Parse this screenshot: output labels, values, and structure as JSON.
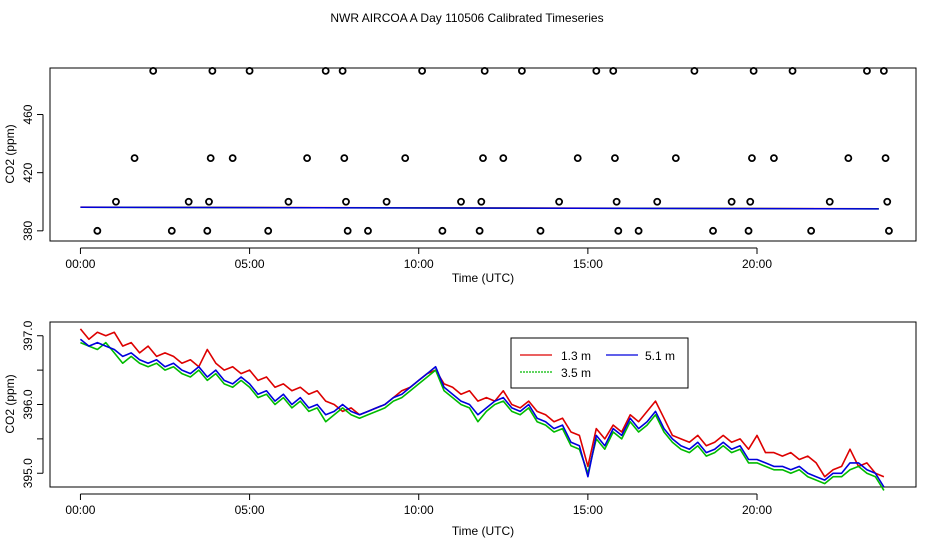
{
  "title": "NWR AIRCOA A  Day 110506  Calibrated Timeseries",
  "colors": {
    "red": "#dd0000",
    "green": "#00bb00",
    "blue": "#0000dd",
    "black": "#000000"
  },
  "chart_data": [
    {
      "type": "scatter",
      "title": "",
      "xlabel": "Time (UTC)",
      "ylabel": "CO2 (ppm)",
      "xlim": [
        -0.9,
        24.7
      ],
      "ylim": [
        373,
        492
      ],
      "xticks": [
        0,
        5,
        10,
        15,
        20
      ],
      "xtick_labels": [
        "00:00",
        "05:00",
        "10:00",
        "15:00",
        "20:00"
      ],
      "yticks": [
        380,
        420,
        460
      ],
      "ytick_labels": [
        "380",
        "420",
        "460"
      ],
      "points": [
        [
          0.5,
          380
        ],
        [
          1.05,
          400
        ],
        [
          1.6,
          430
        ],
        [
          2.15,
          490
        ],
        [
          2.7,
          380
        ],
        [
          3.2,
          400
        ],
        [
          3.75,
          380
        ],
        [
          3.8,
          400
        ],
        [
          3.85,
          430
        ],
        [
          3.9,
          490
        ],
        [
          4.5,
          430
        ],
        [
          5.0,
          490
        ],
        [
          5.55,
          380
        ],
        [
          6.15,
          400
        ],
        [
          6.7,
          430
        ],
        [
          7.25,
          490
        ],
        [
          7.75,
          490
        ],
        [
          7.8,
          430
        ],
        [
          7.85,
          400
        ],
        [
          7.9,
          380
        ],
        [
          8.5,
          380
        ],
        [
          9.05,
          400
        ],
        [
          9.6,
          430
        ],
        [
          10.1,
          490
        ],
        [
          10.7,
          380
        ],
        [
          11.25,
          400
        ],
        [
          11.8,
          380
        ],
        [
          11.85,
          400
        ],
        [
          11.9,
          430
        ],
        [
          11.95,
          490
        ],
        [
          12.5,
          430
        ],
        [
          13.05,
          490
        ],
        [
          13.6,
          380
        ],
        [
          14.15,
          400
        ],
        [
          14.7,
          430
        ],
        [
          15.25,
          490
        ],
        [
          15.75,
          490
        ],
        [
          15.8,
          430
        ],
        [
          15.85,
          400
        ],
        [
          15.9,
          380
        ],
        [
          16.5,
          380
        ],
        [
          17.05,
          400
        ],
        [
          17.6,
          430
        ],
        [
          18.15,
          490
        ],
        [
          18.7,
          380
        ],
        [
          19.25,
          400
        ],
        [
          19.75,
          380
        ],
        [
          19.8,
          400
        ],
        [
          19.85,
          430
        ],
        [
          19.9,
          490
        ],
        [
          20.5,
          430
        ],
        [
          21.05,
          490
        ],
        [
          21.6,
          380
        ],
        [
          22.15,
          400
        ],
        [
          22.7,
          430
        ],
        [
          23.25,
          490
        ],
        [
          23.75,
          490
        ],
        [
          23.8,
          430
        ],
        [
          23.85,
          400
        ],
        [
          23.9,
          380
        ]
      ],
      "series": [
        {
          "name": "1.3 m",
          "color": "#dd0000",
          "y0": 396.3,
          "y1": 395.2
        },
        {
          "name": "3.5 m",
          "color": "#00bb00",
          "y0": 396.2,
          "y1": 395.1
        },
        {
          "name": "5.1 m",
          "color": "#0000dd",
          "y0": 396.2,
          "y1": 395.1
        }
      ],
      "line_x": [
        0,
        23.6
      ]
    },
    {
      "type": "line",
      "title": "",
      "xlabel": "Time (UTC)",
      "ylabel": "CO2 (ppm)",
      "xlim": [
        -0.9,
        24.7
      ],
      "ylim": [
        394.8,
        397.2
      ],
      "xticks": [
        0,
        5,
        10,
        15,
        20
      ],
      "xtick_labels": [
        "00:00",
        "05:00",
        "10:00",
        "15:00",
        "20:00"
      ],
      "yticks": [
        395.0,
        395.5,
        396.0,
        396.5,
        397.0
      ],
      "ytick_labels": [
        "395.0",
        "",
        "396.0",
        "",
        "397.0"
      ],
      "legend": {
        "position": "top-right",
        "labels": [
          "1.3 m",
          "5.1 m",
          "3.5 m"
        ]
      },
      "series": [
        {
          "name": "1.3 m",
          "color": "#dd0000",
          "x": [
            0,
            0.25,
            0.5,
            0.75,
            1,
            1.25,
            1.5,
            1.75,
            2,
            2.25,
            2.5,
            2.75,
            3,
            3.25,
            3.5,
            3.75,
            4,
            4.25,
            4.5,
            4.75,
            5,
            5.25,
            5.5,
            5.75,
            6,
            6.25,
            6.5,
            6.75,
            7,
            7.25,
            7.5,
            7.75,
            8,
            8.25,
            8.5,
            8.75,
            9,
            9.25,
            9.5,
            9.75,
            10,
            10.25,
            10.5,
            10.75,
            11,
            11.25,
            11.5,
            11.75,
            12,
            12.25,
            12.5,
            12.75,
            13,
            13.25,
            13.5,
            13.75,
            14,
            14.25,
            14.5,
            14.75,
            15,
            15.25,
            15.5,
            15.75,
            16,
            16.25,
            16.5,
            16.75,
            17,
            17.25,
            17.5,
            17.75,
            18,
            18.25,
            18.5,
            18.75,
            19,
            19.25,
            19.5,
            19.75,
            20,
            20.25,
            20.5,
            20.75,
            21,
            21.25,
            21.5,
            21.75,
            22,
            22.25,
            22.5,
            22.75,
            23,
            23.25,
            23.5,
            23.75
          ],
          "y": [
            397.1,
            396.95,
            397.05,
            397.0,
            397.05,
            396.85,
            396.9,
            396.75,
            396.85,
            396.7,
            396.75,
            396.7,
            396.6,
            396.65,
            396.55,
            396.8,
            396.6,
            396.5,
            396.55,
            396.45,
            396.5,
            396.35,
            396.4,
            396.25,
            396.3,
            396.2,
            396.25,
            396.15,
            396.2,
            396.05,
            396.0,
            395.9,
            395.95,
            395.85,
            395.9,
            395.95,
            396.0,
            396.1,
            396.2,
            396.25,
            396.35,
            396.45,
            396.5,
            396.3,
            396.25,
            396.15,
            396.2,
            396.05,
            396.1,
            396.05,
            396.2,
            396.0,
            395.95,
            396.05,
            395.9,
            395.85,
            395.75,
            395.8,
            395.6,
            395.55,
            395.1,
            395.65,
            395.5,
            395.7,
            395.6,
            395.85,
            395.75,
            395.9,
            396.05,
            395.8,
            395.55,
            395.5,
            395.45,
            395.55,
            395.4,
            395.45,
            395.55,
            395.45,
            395.5,
            395.35,
            395.55,
            395.3,
            395.3,
            395.25,
            395.3,
            395.2,
            395.25,
            395.15,
            394.95,
            395.05,
            395.1,
            395.35,
            395.1,
            395.15,
            395.0,
            394.95
          ]
        },
        {
          "name": "3.5 m",
          "color": "#00bb00",
          "x": [
            0,
            0.25,
            0.5,
            0.75,
            1,
            1.25,
            1.5,
            1.75,
            2,
            2.25,
            2.5,
            2.75,
            3,
            3.25,
            3.5,
            3.75,
            4,
            4.25,
            4.5,
            4.75,
            5,
            5.25,
            5.5,
            5.75,
            6,
            6.25,
            6.5,
            6.75,
            7,
            7.25,
            7.5,
            7.75,
            8,
            8.25,
            8.5,
            8.75,
            9,
            9.25,
            9.5,
            9.75,
            10,
            10.25,
            10.5,
            10.75,
            11,
            11.25,
            11.5,
            11.75,
            12,
            12.25,
            12.5,
            12.75,
            13,
            13.25,
            13.5,
            13.75,
            14,
            14.25,
            14.5,
            14.75,
            15,
            15.25,
            15.5,
            15.75,
            16,
            16.25,
            16.5,
            16.75,
            17,
            17.25,
            17.5,
            17.75,
            18,
            18.25,
            18.5,
            18.75,
            19,
            19.25,
            19.5,
            19.75,
            20,
            20.25,
            20.5,
            20.75,
            21,
            21.25,
            21.5,
            21.75,
            22,
            22.25,
            22.5,
            22.75,
            23,
            23.25,
            23.5,
            23.75
          ],
          "y": [
            396.9,
            396.85,
            396.8,
            396.9,
            396.75,
            396.6,
            396.7,
            396.6,
            396.55,
            396.6,
            396.5,
            396.55,
            396.45,
            396.4,
            396.5,
            396.35,
            396.45,
            396.3,
            396.25,
            396.35,
            396.25,
            396.1,
            396.15,
            396.0,
            396.1,
            395.95,
            396.05,
            395.9,
            395.95,
            395.75,
            395.85,
            395.95,
            395.85,
            395.8,
            395.85,
            395.9,
            395.95,
            396.05,
            396.1,
            396.2,
            396.3,
            396.4,
            396.5,
            396.2,
            396.1,
            396.0,
            395.95,
            395.75,
            395.9,
            396.0,
            396.05,
            395.9,
            395.85,
            395.95,
            395.75,
            395.7,
            395.6,
            395.65,
            395.4,
            395.35,
            395.0,
            395.5,
            395.35,
            395.6,
            395.5,
            395.75,
            395.6,
            395.7,
            395.85,
            395.6,
            395.45,
            395.35,
            395.3,
            395.4,
            395.25,
            395.3,
            395.4,
            395.3,
            395.35,
            395.15,
            395.15,
            395.1,
            395.05,
            395.05,
            395.0,
            395.05,
            394.95,
            394.9,
            394.85,
            394.95,
            394.95,
            395.05,
            395.1,
            395.0,
            394.95,
            394.75
          ]
        },
        {
          "name": "5.1 m",
          "color": "#0000dd",
          "x": [
            0,
            0.25,
            0.5,
            0.75,
            1,
            1.25,
            1.5,
            1.75,
            2,
            2.25,
            2.5,
            2.75,
            3,
            3.25,
            3.5,
            3.75,
            4,
            4.25,
            4.5,
            4.75,
            5,
            5.25,
            5.5,
            5.75,
            6,
            6.25,
            6.5,
            6.75,
            7,
            7.25,
            7.5,
            7.75,
            8,
            8.25,
            8.5,
            8.75,
            9,
            9.25,
            9.5,
            9.75,
            10,
            10.25,
            10.5,
            10.75,
            11,
            11.25,
            11.5,
            11.75,
            12,
            12.25,
            12.5,
            12.75,
            13,
            13.25,
            13.5,
            13.75,
            14,
            14.25,
            14.5,
            14.75,
            15,
            15.25,
            15.5,
            15.75,
            16,
            16.25,
            16.5,
            16.75,
            17,
            17.25,
            17.5,
            17.75,
            18,
            18.25,
            18.5,
            18.75,
            19,
            19.25,
            19.5,
            19.75,
            20,
            20.25,
            20.5,
            20.75,
            21,
            21.25,
            21.5,
            21.75,
            22,
            22.25,
            22.5,
            22.75,
            23,
            23.25,
            23.5,
            23.75
          ],
          "y": [
            396.95,
            396.85,
            396.9,
            396.85,
            396.8,
            396.7,
            396.75,
            396.65,
            396.6,
            396.65,
            396.55,
            396.6,
            396.5,
            396.45,
            396.55,
            396.4,
            396.5,
            396.35,
            396.3,
            396.4,
            396.3,
            396.15,
            396.2,
            396.05,
            396.15,
            396.0,
            396.1,
            395.95,
            396.0,
            395.85,
            395.9,
            396.0,
            395.9,
            395.85,
            395.9,
            395.95,
            396.0,
            396.1,
            396.15,
            396.25,
            396.35,
            396.45,
            396.55,
            396.25,
            396.15,
            396.05,
            396.0,
            395.85,
            395.95,
            396.05,
            396.1,
            395.95,
            395.9,
            396.0,
            395.8,
            395.75,
            395.65,
            395.7,
            395.45,
            395.4,
            394.95,
            395.55,
            395.4,
            395.65,
            395.55,
            395.8,
            395.65,
            395.75,
            395.9,
            395.65,
            395.5,
            395.4,
            395.35,
            395.45,
            395.3,
            395.35,
            395.45,
            395.35,
            395.4,
            395.2,
            395.2,
            395.15,
            395.1,
            395.1,
            395.05,
            395.1,
            395.0,
            394.95,
            394.9,
            395.0,
            395.0,
            395.15,
            395.15,
            395.05,
            395.0,
            394.8
          ]
        }
      ]
    }
  ]
}
